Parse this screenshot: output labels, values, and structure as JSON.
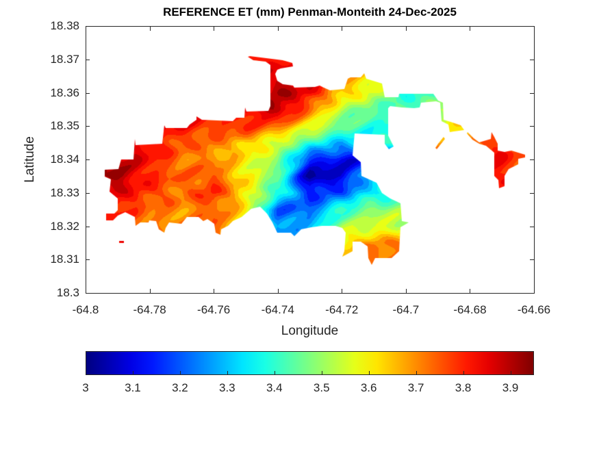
{
  "chart_data": {
    "type": "heatmap",
    "subtype": "filled-contour-map",
    "title": "REFERENCE ET (mm) Penman-Monteith 24-Dec-2025",
    "xlabel": "Longitude",
    "ylabel": "Latitude",
    "xlim": [
      -64.8,
      -64.66
    ],
    "ylim": [
      18.3,
      18.38
    ],
    "xticks": [
      -64.8,
      -64.78,
      -64.76,
      -64.74,
      -64.72,
      -64.7,
      -64.68,
      -64.66
    ],
    "xtick_labels": [
      "-64.8",
      "-64.78",
      "-64.76",
      "-64.74",
      "-64.72",
      "-64.7",
      "-64.68",
      "-64.66"
    ],
    "yticks": [
      18.3,
      18.31,
      18.32,
      18.33,
      18.34,
      18.35,
      18.36,
      18.37,
      18.38
    ],
    "ytick_labels": [
      "18.3",
      "18.31",
      "18.32",
      "18.33",
      "18.34",
      "18.35",
      "18.36",
      "18.37",
      "18.38"
    ],
    "grid": false,
    "colormap": "jet",
    "colorbar": {
      "location": "bottom",
      "clim": [
        3,
        3.95
      ],
      "ticks": [
        3,
        3.1,
        3.2,
        3.3,
        3.4,
        3.5,
        3.6,
        3.7,
        3.8,
        3.9
      ],
      "tick_labels": [
        "3",
        "3.1",
        "3.2",
        "3.3",
        "3.4",
        "3.5",
        "3.6",
        "3.7",
        "3.8",
        "3.9"
      ]
    },
    "grid_lon": [
      -64.79,
      -64.78,
      -64.77,
      -64.76,
      -64.75,
      -64.74,
      -64.73,
      -64.72,
      -64.71,
      -64.7,
      -64.69,
      -64.68,
      -64.67,
      -64.66
    ],
    "grid_lat": [
      18.37,
      18.365,
      18.36,
      18.355,
      18.35,
      18.345,
      18.34,
      18.335,
      18.33,
      18.325,
      18.32,
      18.315,
      18.31
    ],
    "values": [
      [
        null,
        null,
        null,
        null,
        3.82,
        3.82,
        null,
        null,
        null,
        null,
        null,
        null,
        null,
        null
      ],
      [
        null,
        null,
        null,
        null,
        null,
        3.88,
        null,
        3.7,
        3.6,
        null,
        null,
        null,
        null,
        null
      ],
      [
        null,
        null,
        null,
        null,
        null,
        3.9,
        3.85,
        3.65,
        3.55,
        3.4,
        3.42,
        null,
        null,
        null
      ],
      [
        null,
        null,
        null,
        null,
        3.85,
        3.92,
        3.72,
        3.52,
        3.45,
        null,
        3.5,
        null,
        null,
        null
      ],
      [
        null,
        null,
        3.83,
        3.78,
        3.8,
        3.72,
        3.6,
        3.45,
        3.38,
        null,
        null,
        3.7,
        null,
        null
      ],
      [
        null,
        3.85,
        3.75,
        3.72,
        3.65,
        3.55,
        3.4,
        3.3,
        null,
        null,
        null,
        null,
        3.8,
        null
      ],
      [
        3.9,
        3.82,
        3.72,
        3.7,
        3.6,
        3.5,
        3.15,
        3.1,
        null,
        null,
        null,
        null,
        3.82,
        3.75
      ],
      [
        3.92,
        3.8,
        3.73,
        3.76,
        3.6,
        3.45,
        3.02,
        3.08,
        null,
        null,
        null,
        null,
        3.83,
        null
      ],
      [
        3.85,
        3.78,
        3.72,
        3.8,
        3.62,
        3.4,
        3.15,
        3.2,
        3.35,
        null,
        null,
        null,
        null,
        null
      ],
      [
        3.82,
        3.72,
        3.7,
        3.75,
        3.6,
        3.2,
        3.2,
        3.4,
        3.5,
        null,
        null,
        null,
        null,
        null
      ],
      [
        null,
        null,
        null,
        null,
        null,
        3.25,
        3.3,
        3.5,
        3.55,
        null,
        null,
        null,
        null,
        null
      ],
      [
        null,
        null,
        null,
        null,
        null,
        null,
        null,
        3.62,
        3.7,
        null,
        null,
        null,
        null,
        null
      ],
      [
        null,
        null,
        null,
        null,
        null,
        null,
        null,
        null,
        3.75,
        null,
        null,
        null,
        null,
        null
      ]
    ]
  }
}
